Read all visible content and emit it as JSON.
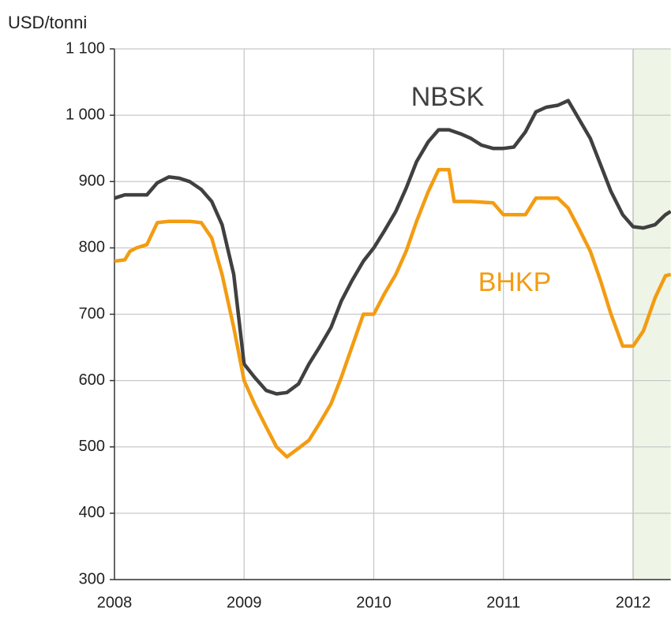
{
  "chart_data": {
    "type": "line",
    "y_axis_label": "USD/tonni",
    "xlim": [
      2008,
      2012.29
    ],
    "xticks": [
      2008,
      2009,
      2010,
      2011,
      2012
    ],
    "ylim": [
      300,
      1100
    ],
    "yticks": [
      300,
      400,
      500,
      600,
      700,
      800,
      900,
      {
        "value": 1000,
        "label": "1 000"
      },
      {
        "value": 1100,
        "label": "1 100"
      }
    ],
    "grid": true,
    "highlight_xrange": [
      2012,
      2012.29
    ],
    "highlight_color": "#eef5e6",
    "series": [
      {
        "name": "NBSK",
        "color": "#404040",
        "x": [
          2008,
          2008.08,
          2008.17,
          2008.25,
          2008.33,
          2008.42,
          2008.5,
          2008.58,
          2008.67,
          2008.75,
          2008.83,
          2008.92,
          2009,
          2009.08,
          2009.17,
          2009.25,
          2009.33,
          2009.42,
          2009.5,
          2009.58,
          2009.67,
          2009.75,
          2009.83,
          2009.92,
          2010,
          2010.08,
          2010.17,
          2010.25,
          2010.33,
          2010.42,
          2010.5,
          2010.58,
          2010.67,
          2010.75,
          2010.83,
          2010.92,
          2011,
          2011.08,
          2011.17,
          2011.25,
          2011.33,
          2011.42,
          2011.5,
          2011.58,
          2011.67,
          2011.75,
          2011.83,
          2011.92,
          2012,
          2012.08,
          2012.17,
          2012.25,
          2012.29
        ],
        "values": [
          875,
          880,
          880,
          880,
          898,
          907,
          905,
          900,
          888,
          870,
          835,
          760,
          625,
          605,
          585,
          580,
          582,
          595,
          625,
          650,
          680,
          720,
          750,
          780,
          800,
          825,
          855,
          890,
          930,
          960,
          978,
          978,
          972,
          965,
          955,
          950,
          950,
          952,
          975,
          1005,
          1012,
          1015,
          1022,
          995,
          965,
          925,
          885,
          850,
          832,
          830,
          835,
          850,
          855
        ]
      },
      {
        "name": "BHKP",
        "color": "#f39c12",
        "x": [
          2008,
          2008.08,
          2008.12,
          2008.17,
          2008.25,
          2008.33,
          2008.42,
          2008.5,
          2008.58,
          2008.67,
          2008.75,
          2008.83,
          2008.92,
          2009,
          2009.08,
          2009.17,
          2009.25,
          2009.33,
          2009.42,
          2009.5,
          2009.58,
          2009.67,
          2009.75,
          2009.83,
          2009.92,
          2010,
          2010.08,
          2010.17,
          2010.25,
          2010.33,
          2010.42,
          2010.5,
          2010.58,
          2010.62,
          2010.75,
          2010.92,
          2011,
          2011.17,
          2011.25,
          2011.33,
          2011.42,
          2011.5,
          2011.58,
          2011.67,
          2011.75,
          2011.83,
          2011.92,
          2012,
          2012.08,
          2012.17,
          2012.25,
          2012.29
        ],
        "values": [
          780,
          782,
          795,
          800,
          805,
          838,
          840,
          840,
          840,
          838,
          815,
          760,
          680,
          600,
          565,
          530,
          500,
          485,
          498,
          510,
          535,
          565,
          605,
          650,
          700,
          700,
          730,
          760,
          795,
          840,
          885,
          918,
          918,
          870,
          870,
          868,
          850,
          850,
          875,
          875,
          875,
          860,
          830,
          795,
          750,
          700,
          652,
          652,
          675,
          725,
          758,
          760
        ]
      }
    ]
  }
}
